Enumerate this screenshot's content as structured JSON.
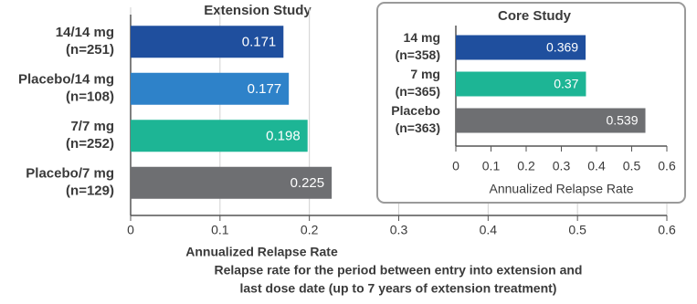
{
  "chart_data": [
    {
      "type": "bar",
      "orientation": "horizontal",
      "title": "Extension Study",
      "categories": [
        [
          "14/14 mg",
          "(n=251)"
        ],
        [
          "Placebo/14 mg",
          "(n=108)"
        ],
        [
          "7/7 mg",
          "(n=252)"
        ],
        [
          "Placebo/7 mg",
          "(n=129)"
        ]
      ],
      "values": [
        0.171,
        0.177,
        0.198,
        0.225
      ],
      "colors": [
        "#1f4f9e",
        "#2e82c9",
        "#1db595",
        "#6e6f72"
      ],
      "xlim": [
        0,
        0.6
      ],
      "xticks": [
        0,
        0.1,
        0.2,
        0.3,
        0.4,
        0.5,
        0.6
      ],
      "xlabel": "Annualized Relapse Rate",
      "note": [
        "Relapse rate for the period between entry into extension and",
        "last dose date (up to 7 years of extension treatment)"
      ],
      "grid": true
    },
    {
      "type": "bar",
      "orientation": "horizontal",
      "title": "Core Study",
      "categories": [
        [
          "14 mg",
          "(n=358)"
        ],
        [
          "7 mg",
          "(n=365)"
        ],
        [
          "Placebo",
          "(n=363)"
        ]
      ],
      "values": [
        0.369,
        0.37,
        0.539
      ],
      "colors": [
        "#1f4f9e",
        "#1db595",
        "#6e6f72"
      ],
      "xlim": [
        0,
        0.6
      ],
      "xticks": [
        0,
        0.1,
        0.2,
        0.3,
        0.4,
        0.5,
        0.6
      ],
      "xlabel": "Annualized Relapse Rate",
      "grid": false
    }
  ]
}
